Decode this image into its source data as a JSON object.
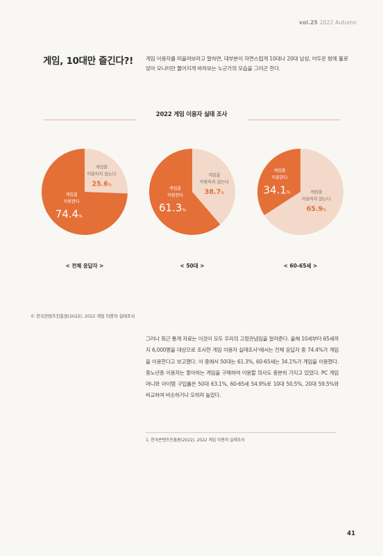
{
  "header": {
    "issue_vol": "vol.25",
    "issue_season": "2022 Autumn"
  },
  "headline": "게임, 10대만 즐긴다?!",
  "intro": "게임 이용자를 떠올려보라고 말하면, 대부분이 자연스럽게 10대나 20대 남성, 어두운 방에 홀로 앉아 모니터만 뚫어지게 바라보는 누군가의 모습을 그리곤 한다.",
  "survey_title": "2022 게임 이용자 실태 조사",
  "chart_data": [
    {
      "type": "pie",
      "caption": "< 전체 응답자 >",
      "slices": [
        {
          "label": "게임을 이용하지 않는다",
          "value": 25.6,
          "display": "25.6",
          "color": "#f2d9c9"
        },
        {
          "label": "게임을 이용한다",
          "value": 74.4,
          "display": "74.4",
          "color": "#e46f37"
        }
      ]
    },
    {
      "type": "pie",
      "caption": "< 50대 >",
      "slices": [
        {
          "label": "게임을 이용하지 않는다",
          "value": 38.7,
          "display": "38.7",
          "color": "#f2d9c9"
        },
        {
          "label": "게임을 이용한다",
          "value": 61.3,
          "display": "61.3",
          "color": "#e46f37"
        }
      ]
    },
    {
      "type": "pie",
      "caption": "< 60-65세 >",
      "slices": [
        {
          "label": "게임을 이용하지 않는다",
          "value": 65.9,
          "display": "65.9",
          "color": "#f2d9c9"
        },
        {
          "label": "게임을 이용한다",
          "value": 34.1,
          "display": "34.1",
          "color": "#e46f37"
        }
      ]
    }
  ],
  "source": "© 한국콘텐츠진흥원(2022), 2022 게임 이용자 실태조사",
  "body": "그러나 최근 통계 자료는 이것이 모두 우리의 고정관념임을 알려준다. 올해 10세부터 65세까지 6,000명을 대상으로 조사한 게임 이용자 실태조사¹에서는 전체 응답자 중 74.4%가 게임을 이용한다고 보고했다. 이 중에서 50대는 61.3%, 60-65세는 34.1%가 게임을 이용했다. 중노년층 이용자는 좋아하는 게임을 구매하여 이용할 의사도 충분히 가지고 있었다. PC 게임 머니와 아이템 구입률은 50대 63.1%, 60-65세 54.9%로 10대 50.5%, 20대 59.5%와 비교하여 비슷하거나 오히려 높았다.",
  "footnote": "1. 한국콘텐츠진흥원(2022), 2022 게임 이용자 실태조사",
  "page_number": "41"
}
